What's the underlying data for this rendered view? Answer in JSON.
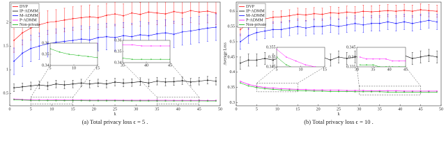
{
  "chart_data": [
    {
      "type": "line",
      "xlabel": "k",
      "caption": "(a) Total privacy loss ϵ = 5 .",
      "x": [
        1,
        3,
        5,
        7,
        9,
        11,
        13,
        15,
        17,
        19,
        21,
        23,
        25,
        27,
        29,
        31,
        33,
        35,
        37,
        39,
        41,
        43,
        45,
        47,
        49
      ],
      "xlim": [
        0,
        50
      ],
      "xticks": [
        0,
        5,
        10,
        15,
        20,
        25,
        30,
        35,
        40,
        45,
        50
      ],
      "ylim": [
        0.24,
        2.43
      ],
      "yticks": [
        0.5,
        1,
        1.5,
        2
      ],
      "legend": "upper left",
      "series": [
        {
          "name": "DVP",
          "color": "#ff0000",
          "values": [
            1.62,
            1.78,
            1.88,
            1.95,
            2.0,
            2.02,
            2.05,
            2.08,
            2.1,
            2.12,
            2.1,
            2.15,
            2.18,
            2.14,
            2.2,
            2.17,
            2.22,
            2.2,
            2.18,
            2.23,
            2.2,
            2.25,
            2.22,
            2.24,
            2.2
          ],
          "errors": [
            0.25,
            0.25,
            0.25,
            0.25,
            0.25,
            0.25,
            0.25,
            0.25,
            0.25,
            0.25,
            0.25,
            0.25,
            0.25,
            0.25,
            0.25,
            0.25,
            0.25,
            0.25,
            0.25,
            0.25,
            0.25,
            0.25,
            0.25,
            0.25,
            0.25
          ]
        },
        {
          "name": "IP-ADMM",
          "color": "#000000",
          "values": [
            0.62,
            0.64,
            0.66,
            0.68,
            0.66,
            0.7,
            0.68,
            0.7,
            0.72,
            0.7,
            0.72,
            0.7,
            0.74,
            0.72,
            0.73,
            0.75,
            0.72,
            0.76,
            0.74,
            0.75,
            0.77,
            0.74,
            0.76,
            0.78,
            0.76
          ],
          "errors": [
            0.08,
            0.08,
            0.08,
            0.08,
            0.08,
            0.08,
            0.08,
            0.08,
            0.08,
            0.08,
            0.08,
            0.08,
            0.08,
            0.08,
            0.08,
            0.08,
            0.08,
            0.08,
            0.08,
            0.08,
            0.08,
            0.08,
            0.08,
            0.08,
            0.08
          ]
        },
        {
          "name": "M-ADMM",
          "color": "#0000ff",
          "values": [
            1.18,
            1.35,
            1.45,
            1.5,
            1.55,
            1.58,
            1.6,
            1.62,
            1.65,
            1.63,
            1.68,
            1.7,
            1.68,
            1.72,
            1.7,
            1.74,
            1.72,
            1.76,
            1.78,
            1.75,
            1.8,
            1.82,
            1.85,
            1.88,
            1.9
          ],
          "errors": [
            0.28,
            0.28,
            0.28,
            0.28,
            0.28,
            0.28,
            0.28,
            0.28,
            0.28,
            0.28,
            0.28,
            0.28,
            0.28,
            0.28,
            0.28,
            0.28,
            0.28,
            0.28,
            0.28,
            0.28,
            0.28,
            0.28,
            0.28,
            0.28,
            0.28
          ]
        },
        {
          "name": "P-ADMM",
          "color": "#ff00ff",
          "values": [
            0.38,
            0.372,
            0.368,
            0.365,
            0.363,
            0.362,
            0.361,
            0.36,
            0.36,
            0.359,
            0.359,
            0.358,
            0.358,
            0.357,
            0.357,
            0.357,
            0.356,
            0.356,
            0.356,
            0.355,
            0.355,
            0.355,
            0.355,
            0.354,
            0.354
          ]
        },
        {
          "name": "Non-private",
          "color": "#00b000",
          "values": [
            0.37,
            0.36,
            0.355,
            0.352,
            0.35,
            0.349,
            0.348,
            0.347,
            0.347,
            0.346,
            0.346,
            0.345,
            0.345,
            0.345,
            0.344,
            0.344,
            0.344,
            0.344,
            0.343,
            0.343,
            0.343,
            0.343,
            0.343,
            0.342,
            0.342
          ]
        }
      ],
      "insets": [
        {
          "xlim": [
            5,
            15
          ],
          "ylim": [
            0.34,
            0.36
          ],
          "xticks": [
            5,
            10,
            15
          ],
          "yticks": [
            0.34,
            0.35,
            0.36
          ]
        },
        {
          "xlim": [
            35,
            45
          ],
          "ylim": [
            0.34,
            0.36
          ],
          "xticks": [
            35,
            40,
            45
          ],
          "yticks": [
            0.34,
            0.35,
            0.36
          ]
        }
      ]
    },
    {
      "type": "line",
      "xlabel": "k",
      "ylabel": "Average Loss",
      "caption": "(b) Total privacy loss ϵ = 10 .",
      "x": [
        1,
        3,
        5,
        7,
        9,
        11,
        13,
        15,
        17,
        19,
        21,
        23,
        25,
        27,
        29,
        31,
        33,
        35,
        37,
        39,
        41,
        43,
        45,
        47,
        49
      ],
      "xlim": [
        0,
        50
      ],
      "xticks": [
        0,
        5,
        10,
        15,
        20,
        25,
        30,
        35,
        40,
        45,
        50
      ],
      "ylim": [
        0.29,
        0.63
      ],
      "yticks": [
        0.3,
        0.35,
        0.4,
        0.45,
        0.5,
        0.55,
        0.6
      ],
      "legend": "upper left",
      "series": [
        {
          "name": "DVP",
          "color": "#ff0000",
          "values": [
            0.54,
            0.56,
            0.57,
            0.575,
            0.58,
            0.582,
            0.585,
            0.59,
            0.588,
            0.592,
            0.59,
            0.595,
            0.593,
            0.597,
            0.595,
            0.6,
            0.598,
            0.6,
            0.602,
            0.6,
            0.603,
            0.6,
            0.605,
            0.602,
            0.6
          ],
          "errors": [
            0.02,
            0.02,
            0.02,
            0.02,
            0.02,
            0.02,
            0.02,
            0.02,
            0.02,
            0.02,
            0.02,
            0.02,
            0.02,
            0.02,
            0.02,
            0.02,
            0.02,
            0.02,
            0.02,
            0.02,
            0.02,
            0.02,
            0.02,
            0.02,
            0.02
          ]
        },
        {
          "name": "IP-ADMM",
          "color": "#000000",
          "values": [
            0.43,
            0.44,
            0.44,
            0.445,
            0.44,
            0.45,
            0.445,
            0.44,
            0.45,
            0.445,
            0.45,
            0.44,
            0.45,
            0.445,
            0.45,
            0.455,
            0.44,
            0.45,
            0.445,
            0.45,
            0.455,
            0.445,
            0.45,
            0.455,
            0.45
          ],
          "errors": [
            0.02,
            0.02,
            0.02,
            0.02,
            0.02,
            0.02,
            0.02,
            0.02,
            0.02,
            0.02,
            0.02,
            0.02,
            0.02,
            0.02,
            0.02,
            0.02,
            0.02,
            0.02,
            0.02,
            0.02,
            0.02,
            0.02,
            0.02,
            0.02,
            0.02
          ]
        },
        {
          "name": "M-ADMM",
          "color": "#0000ff",
          "values": [
            0.5,
            0.52,
            0.53,
            0.535,
            0.54,
            0.54,
            0.545,
            0.55,
            0.545,
            0.55,
            0.55,
            0.555,
            0.55,
            0.555,
            0.56,
            0.555,
            0.56,
            0.56,
            0.565,
            0.56,
            0.565,
            0.56,
            0.565,
            0.57,
            0.565
          ],
          "errors": [
            0.025,
            0.025,
            0.025,
            0.025,
            0.025,
            0.025,
            0.025,
            0.025,
            0.025,
            0.025,
            0.025,
            0.025,
            0.025,
            0.025,
            0.025,
            0.025,
            0.025,
            0.025,
            0.025,
            0.025,
            0.025,
            0.025,
            0.025,
            0.025,
            0.025
          ]
        },
        {
          "name": "P-ADMM",
          "color": "#ff00ff",
          "values": [
            0.37,
            0.36,
            0.354,
            0.35,
            0.348,
            0.346,
            0.345,
            0.344,
            0.343,
            0.342,
            0.342,
            0.341,
            0.341,
            0.34,
            0.34,
            0.34,
            0.339,
            0.339,
            0.339,
            0.339,
            0.338,
            0.338,
            0.338,
            0.338,
            0.338
          ]
        },
        {
          "name": "Non-private",
          "color": "#00b000",
          "values": [
            0.365,
            0.355,
            0.35,
            0.346,
            0.344,
            0.342,
            0.341,
            0.34,
            0.339,
            0.338,
            0.338,
            0.337,
            0.337,
            0.337,
            0.336,
            0.336,
            0.336,
            0.336,
            0.335,
            0.335,
            0.335,
            0.335,
            0.335,
            0.335,
            0.335
          ]
        }
      ],
      "insets": [
        {
          "xlim": [
            5,
            15
          ],
          "ylim": [
            0.345,
            0.355
          ],
          "xticks": [
            5,
            10,
            15
          ],
          "yticks": [
            0.345,
            0.35,
            0.355
          ]
        },
        {
          "xlim": [
            30,
            45
          ],
          "ylim": [
            0.335,
            0.345
          ],
          "xticks": [
            30,
            35,
            40,
            45
          ],
          "yticks": [
            0.335,
            0.34,
            0.345
          ]
        }
      ]
    }
  ]
}
